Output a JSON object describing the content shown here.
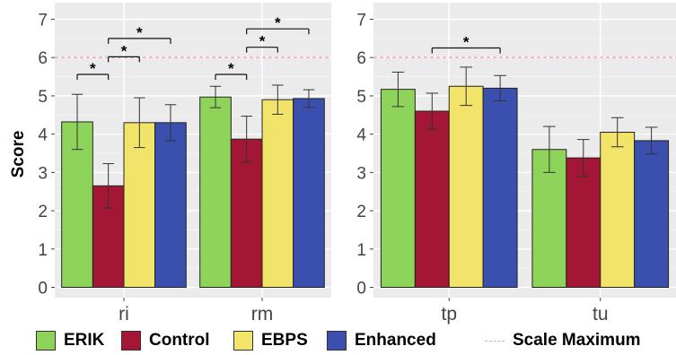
{
  "chart_data": {
    "type": "bar",
    "ylabel": "Score",
    "ylim": [
      0,
      7
    ],
    "yticks": [
      "0",
      "1",
      "2",
      "3",
      "4",
      "5",
      "6",
      "7"
    ],
    "reference_line": {
      "value": 6,
      "label": "Scale Maximum",
      "color": "#f2a3a3"
    },
    "legend": {
      "placement": "bottom",
      "entries": [
        {
          "label": "ERIK",
          "color": "#8fd45a"
        },
        {
          "label": "Control",
          "color": "#a31634"
        },
        {
          "label": "EBPS",
          "color": "#f2e46a"
        },
        {
          "label": "Enhanced",
          "color": "#3a4fae"
        },
        {
          "label": "Scale Maximum",
          "color": "#f2a3a3"
        }
      ]
    },
    "panels": [
      {
        "categories": [
          "ri",
          "rm"
        ],
        "series": [
          {
            "name": "ERIK",
            "values": [
              4.32,
              4.97
            ],
            "errors": [
              0.72,
              0.28
            ]
          },
          {
            "name": "Control",
            "values": [
              2.65,
              3.87
            ],
            "errors": [
              0.58,
              0.6
            ]
          },
          {
            "name": "EBPS",
            "values": [
              4.3,
              4.9
            ],
            "errors": [
              0.65,
              0.38
            ]
          },
          {
            "name": "Enhanced",
            "values": [
              4.3,
              4.93
            ],
            "errors": [
              0.47,
              0.23
            ]
          }
        ],
        "significance": [
          {
            "category": 0,
            "from": 0,
            "to": 1,
            "y": 5.56,
            "label": "*"
          },
          {
            "category": 0,
            "from": 1,
            "to": 2,
            "y": 6.02,
            "label": "*"
          },
          {
            "category": 0,
            "from": 1,
            "to": 3,
            "y": 6.5,
            "label": "*"
          },
          {
            "category": 1,
            "from": 0,
            "to": 1,
            "y": 5.56,
            "label": "*"
          },
          {
            "category": 1,
            "from": 1,
            "to": 2,
            "y": 6.27,
            "label": "*"
          },
          {
            "category": 1,
            "from": 1,
            "to": 3,
            "y": 6.75,
            "label": "*"
          }
        ]
      },
      {
        "categories": [
          "tp",
          "tu"
        ],
        "series": [
          {
            "name": "ERIK",
            "values": [
              5.17,
              3.6
            ],
            "errors": [
              0.45,
              0.6
            ]
          },
          {
            "name": "Control",
            "values": [
              4.6,
              3.38
            ],
            "errors": [
              0.47,
              0.48
            ]
          },
          {
            "name": "EBPS",
            "values": [
              5.25,
              4.05
            ],
            "errors": [
              0.5,
              0.38
            ]
          },
          {
            "name": "Enhanced",
            "values": [
              5.2,
              3.83
            ],
            "errors": [
              0.33,
              0.35
            ]
          }
        ],
        "significance": [
          {
            "category": 0,
            "from": 1,
            "to": 3,
            "y": 6.25,
            "label": "*"
          }
        ]
      }
    ]
  }
}
